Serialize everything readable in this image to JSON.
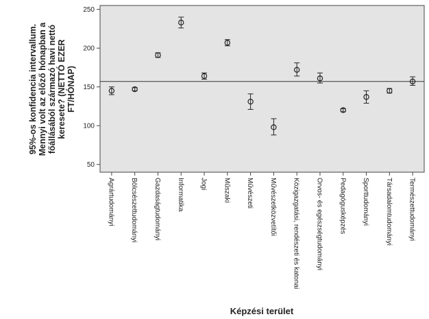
{
  "chart_data": {
    "type": "scatter",
    "subtype": "error-bar",
    "title": "",
    "xlabel": "Képzési terület",
    "ylabel_lines": [
      "95%-os konfidencia intervallum.",
      "Mennyi volt az előző hónapban a",
      "főállásából származó havi nettó",
      "keresete? (NETTÓ EZER",
      "FT/HÓNAP)"
    ],
    "ylim": [
      40,
      255
    ],
    "yticks": [
      50,
      100,
      150,
      200,
      250
    ],
    "reference_line": 157,
    "plot_background": "#e4e4e4",
    "grid": false,
    "categories": [
      "Agrártudományi",
      "Bölcsészettudományi",
      "Gazdaságtudományi",
      "Informatika",
      "Jogi",
      "Műszaki",
      "Művészeti",
      "Művészetközvetítői",
      "Közigazgatási, rendészeti és katonai",
      "Orvos- és egészségtudományi",
      "Pedagógusképzés",
      "Sporttudományi",
      "Társadalomtudományi",
      "Természettudományi"
    ],
    "means": [
      145,
      147,
      191,
      233,
      164,
      207,
      131,
      98,
      172,
      161,
      120,
      137,
      145,
      157
    ],
    "lower": [
      140,
      145,
      188,
      226,
      160,
      203,
      121,
      88,
      164,
      155,
      118,
      129,
      142,
      152
    ],
    "upper": [
      150,
      149,
      194,
      240,
      168,
      211,
      141,
      109,
      181,
      168,
      122,
      145,
      148,
      163
    ]
  }
}
